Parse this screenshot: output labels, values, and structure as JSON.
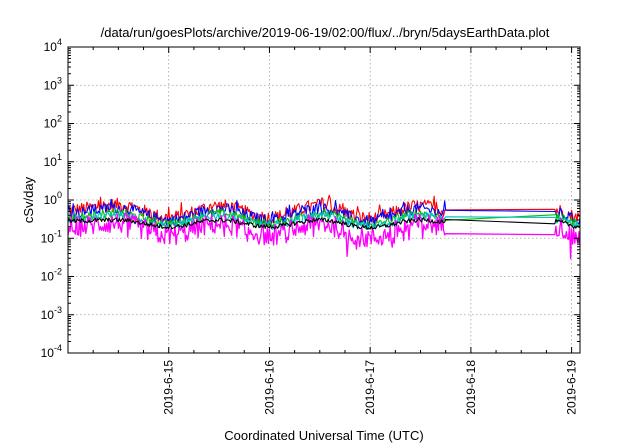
{
  "chart_data": {
    "type": "line",
    "title": "/data/run/goesPlots/archive/2019-06-19/02:00/flux/../bryn/5daysEarthData.plot",
    "xlabel": "Coordinated Universal Time (UTC)",
    "ylabel": "cSv/day",
    "yscale": "log",
    "ylim": [
      0.0001,
      10000
    ],
    "xlim": [
      "2019-06-14T00:00",
      "2019-06-19T02:00"
    ],
    "grid": true,
    "yticks": [
      {
        "base": "10",
        "exp": "-4",
        "value": 0.0001
      },
      {
        "base": "10",
        "exp": "-3",
        "value": 0.001
      },
      {
        "base": "10",
        "exp": "-2",
        "value": 0.01
      },
      {
        "base": "10",
        "exp": "-1",
        "value": 0.1
      },
      {
        "base": "10",
        "exp": "0",
        "value": 1
      },
      {
        "base": "10",
        "exp": "1",
        "value": 10
      },
      {
        "base": "10",
        "exp": "2",
        "value": 100
      },
      {
        "base": "10",
        "exp": "3",
        "value": 1000
      },
      {
        "base": "10",
        "exp": "4",
        "value": 10000
      }
    ],
    "xticks": [
      {
        "label": "2019-6-15",
        "value": "2019-06-15T00:00"
      },
      {
        "label": "2019-6-16",
        "value": "2019-06-16T00:00"
      },
      {
        "label": "2019-6-17",
        "value": "2019-06-17T00:00"
      },
      {
        "label": "2019-6-18",
        "value": "2019-06-18T00:00"
      },
      {
        "label": "2019-6-19",
        "value": "2019-06-19T00:00"
      }
    ],
    "data_gap": [
      "2019-06-17T18:00",
      "2019-06-18T20:00"
    ],
    "series": [
      {
        "color": "#ff0000",
        "values": [
          {
            "x": "2019-06-14T00:00",
            "y": 0.55
          },
          {
            "x": "2019-06-14T12:00",
            "y": 0.75
          },
          {
            "x": "2019-06-15T00:00",
            "y": 0.35
          },
          {
            "x": "2019-06-15T12:00",
            "y": 0.7
          },
          {
            "x": "2019-06-16T00:00",
            "y": 0.35
          },
          {
            "x": "2019-06-16T12:00",
            "y": 0.72
          },
          {
            "x": "2019-06-17T00:00",
            "y": 0.33
          },
          {
            "x": "2019-06-17T12:00",
            "y": 0.7
          },
          {
            "x": "2019-06-17T18:00",
            "y": 0.55
          },
          {
            "x": "2019-06-18T20:00",
            "y": 0.55
          },
          {
            "x": "2019-06-19T02:00",
            "y": 0.35
          }
        ]
      },
      {
        "color": "#0000ff",
        "values": [
          {
            "x": "2019-06-14T00:00",
            "y": 0.45
          },
          {
            "x": "2019-06-14T12:00",
            "y": 0.62
          },
          {
            "x": "2019-06-15T00:00",
            "y": 0.3
          },
          {
            "x": "2019-06-15T12:00",
            "y": 0.6
          },
          {
            "x": "2019-06-16T00:00",
            "y": 0.3
          },
          {
            "x": "2019-06-16T12:00",
            "y": 0.6
          },
          {
            "x": "2019-06-17T00:00",
            "y": 0.28
          },
          {
            "x": "2019-06-17T12:00",
            "y": 0.6
          },
          {
            "x": "2019-06-17T18:00",
            "y": 0.45
          },
          {
            "x": "2019-06-18T20:00",
            "y": 0.45
          },
          {
            "x": "2019-06-19T02:00",
            "y": 0.3
          }
        ]
      },
      {
        "color": "#00c000",
        "values": [
          {
            "x": "2019-06-14T00:00",
            "y": 0.35
          },
          {
            "x": "2019-06-14T12:00",
            "y": 0.45
          },
          {
            "x": "2019-06-15T00:00",
            "y": 0.25
          },
          {
            "x": "2019-06-15T12:00",
            "y": 0.45
          },
          {
            "x": "2019-06-16T00:00",
            "y": 0.25
          },
          {
            "x": "2019-06-16T12:00",
            "y": 0.45
          },
          {
            "x": "2019-06-17T00:00",
            "y": 0.23
          },
          {
            "x": "2019-06-17T12:00",
            "y": 0.45
          },
          {
            "x": "2019-06-17T18:00",
            "y": 0.35
          },
          {
            "x": "2019-06-18T20:00",
            "y": 0.35
          },
          {
            "x": "2019-06-19T02:00",
            "y": 0.25
          }
        ]
      },
      {
        "color": "#00c0c0",
        "values": [
          {
            "x": "2019-06-14T00:00",
            "y": 0.3
          },
          {
            "x": "2019-06-14T12:00",
            "y": 0.4
          },
          {
            "x": "2019-06-15T00:00",
            "y": 0.22
          },
          {
            "x": "2019-06-15T12:00",
            "y": 0.4
          },
          {
            "x": "2019-06-16T00:00",
            "y": 0.22
          },
          {
            "x": "2019-06-16T12:00",
            "y": 0.4
          },
          {
            "x": "2019-06-17T00:00",
            "y": 0.2
          },
          {
            "x": "2019-06-17T12:00",
            "y": 0.4
          },
          {
            "x": "2019-06-17T18:00",
            "y": 0.3
          },
          {
            "x": "2019-06-18T20:00",
            "y": 0.3
          },
          {
            "x": "2019-06-19T02:00",
            "y": 0.22
          }
        ]
      },
      {
        "color": "#ff00ff",
        "values": [
          {
            "x": "2019-06-14T00:00",
            "y": 0.2
          },
          {
            "x": "2019-06-14T12:00",
            "y": 0.25
          },
          {
            "x": "2019-06-15T00:00",
            "y": 0.12
          },
          {
            "x": "2019-06-15T12:00",
            "y": 0.24
          },
          {
            "x": "2019-06-16T00:00",
            "y": 0.12
          },
          {
            "x": "2019-06-16T12:00",
            "y": 0.24
          },
          {
            "x": "2019-06-17T00:00",
            "y": 0.1
          },
          {
            "x": "2019-06-17T12:00",
            "y": 0.24
          },
          {
            "x": "2019-06-17T18:00",
            "y": 0.22
          },
          {
            "x": "2019-06-18T20:00",
            "y": 0.22
          },
          {
            "x": "2019-06-19T02:00",
            "y": 0.1
          }
        ]
      },
      {
        "color": "#000000",
        "values": [
          {
            "x": "2019-06-14T00:00",
            "y": 0.28
          },
          {
            "x": "2019-06-14T12:00",
            "y": 0.3
          },
          {
            "x": "2019-06-15T00:00",
            "y": 0.2
          },
          {
            "x": "2019-06-15T12:00",
            "y": 0.3
          },
          {
            "x": "2019-06-16T00:00",
            "y": 0.2
          },
          {
            "x": "2019-06-16T12:00",
            "y": 0.3
          },
          {
            "x": "2019-06-17T00:00",
            "y": 0.19
          },
          {
            "x": "2019-06-17T12:00",
            "y": 0.3
          },
          {
            "x": "2019-06-17T18:00",
            "y": 0.27
          },
          {
            "x": "2019-06-18T20:00",
            "y": 0.27
          },
          {
            "x": "2019-06-19T02:00",
            "y": 0.2
          }
        ]
      }
    ]
  }
}
